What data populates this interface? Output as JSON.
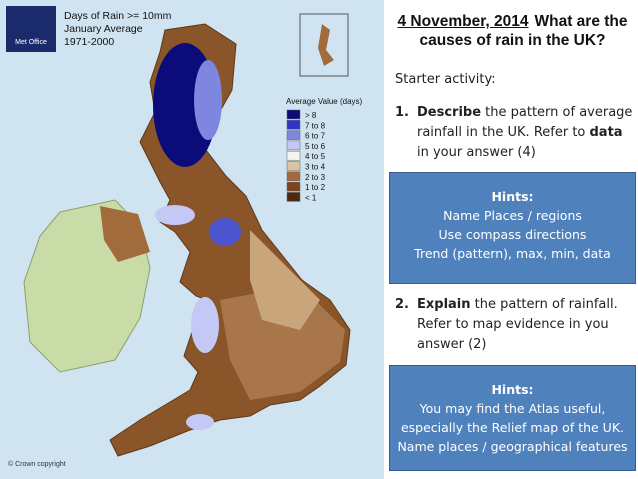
{
  "map": {
    "logo": "Met Office",
    "title_lines": [
      "Days of Rain >= 10mm",
      "January Average",
      "1971-2000"
    ],
    "legend": {
      "title": "Average Value (days)",
      "items": [
        {
          "label": "> 8",
          "color": "#0b0b7a"
        },
        {
          "label": "7 to 8",
          "color": "#2f35c4"
        },
        {
          "label": "6 to 7",
          "color": "#7f86e0"
        },
        {
          "label": "5 to 6",
          "color": "#c4c8f4"
        },
        {
          "label": "4 to 5",
          "color": "#f6f4f0"
        },
        {
          "label": "3 to 4",
          "color": "#dcc3a0"
        },
        {
          "label": "2 to 3",
          "color": "#a26b3c"
        },
        {
          "label": "1 to 2",
          "color": "#7a4520"
        },
        {
          "label": "< 1",
          "color": "#4e2a10"
        }
      ]
    },
    "copyright": "© Crown copyright"
  },
  "slide": {
    "title": {
      "date": "4 November, 2014",
      "text": "What are the causes of rain in the UK?"
    },
    "starter": "Starter activity:",
    "tasks": [
      {
        "number": "1.",
        "parts": [
          {
            "text": "Describe",
            "bold": true
          },
          {
            "text": " the pattern of average rainfall in the UK. Refer to ",
            "bold": false
          },
          {
            "text": "data",
            "bold": true
          },
          {
            "text": " in your answer (4)",
            "bold": false
          }
        ]
      },
      {
        "number": "2.",
        "parts": [
          {
            "text": "Explain",
            "bold": true
          },
          {
            "text": " the pattern of rainfall. Refer to map evidence in you answer (2)",
            "bold": false
          }
        ]
      }
    ],
    "hints": [
      {
        "title": "Hints:",
        "lines": [
          "Name Places / regions",
          "Use compass directions",
          "Trend (pattern), max, min, data"
        ]
      },
      {
        "title": "Hints:",
        "lines": [
          "You may find the Atlas useful,",
          "especially the Relief map of the UK.",
          "Name places / geographical features"
        ]
      }
    ]
  }
}
